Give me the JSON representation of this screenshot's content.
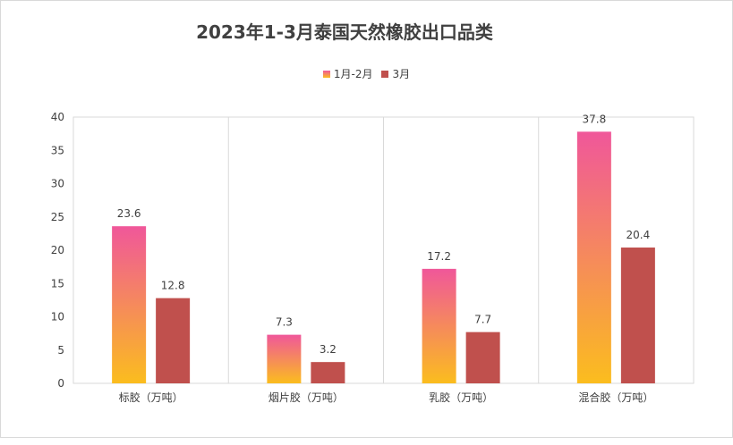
{
  "chart_data": {
    "type": "bar",
    "title": "2023年1-3月泰国天然橡胶出口品类",
    "categories": [
      "标胶（万吨）",
      "烟片胶（万吨）",
      "乳胶（万吨）",
      "混合胶（万吨）"
    ],
    "series": [
      {
        "name": "1月-2月",
        "values": [
          23.6,
          7.3,
          17.2,
          37.8
        ],
        "color_top": "#f0579a",
        "color_bottom": "#fbbd1e"
      },
      {
        "name": "3月",
        "values": [
          12.8,
          3.2,
          7.7,
          20.4
        ],
        "color": "#c0504d"
      }
    ],
    "ylim": [
      0,
      40
    ],
    "yticks": [
      0,
      5,
      10,
      15,
      20,
      25,
      30,
      35,
      40
    ],
    "grid": "vertical category separators",
    "legend": "top-center",
    "xlabel": "",
    "ylabel": ""
  }
}
